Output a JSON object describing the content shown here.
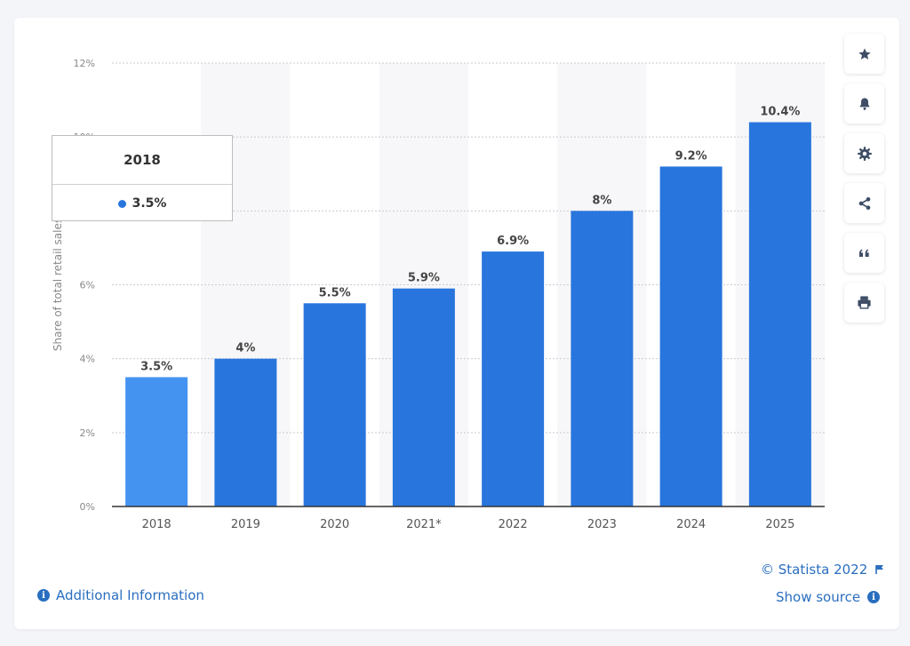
{
  "chart_data": {
    "type": "bar",
    "categories": [
      "2018",
      "2019",
      "2020",
      "2021*",
      "2022",
      "2023",
      "2024",
      "2025"
    ],
    "values": [
      3.5,
      4,
      5.5,
      5.9,
      6.9,
      8,
      9.2,
      10.4
    ],
    "data_labels": [
      "3.5%",
      "4%",
      "5.5%",
      "5.9%",
      "6.9%",
      "8%",
      "9.2%",
      "10.4%"
    ],
    "ylabel": "Share of total retail sales",
    "ylim": [
      0,
      12
    ],
    "yticks": [
      0,
      2,
      4,
      6,
      8,
      10,
      12
    ],
    "ytick_labels": [
      "0%",
      "2%",
      "4%",
      "6%",
      "8%",
      "10%",
      "12%"
    ],
    "grid": true,
    "bar_color": "#2876dd",
    "highlight_color": "#4593f0",
    "highlight_index": 0
  },
  "tooltip": {
    "title": "2018",
    "value": "3.5%",
    "dot_color": "#2876dd"
  },
  "toolbar": {
    "icons": [
      "star-icon",
      "bell-icon",
      "gear-icon",
      "share-icon",
      "quote-icon",
      "print-icon"
    ]
  },
  "footer": {
    "copyright": "© Statista 2022",
    "show_source": "Show source",
    "additional_info": "Additional Information",
    "link_color": "#2a6ebf"
  }
}
